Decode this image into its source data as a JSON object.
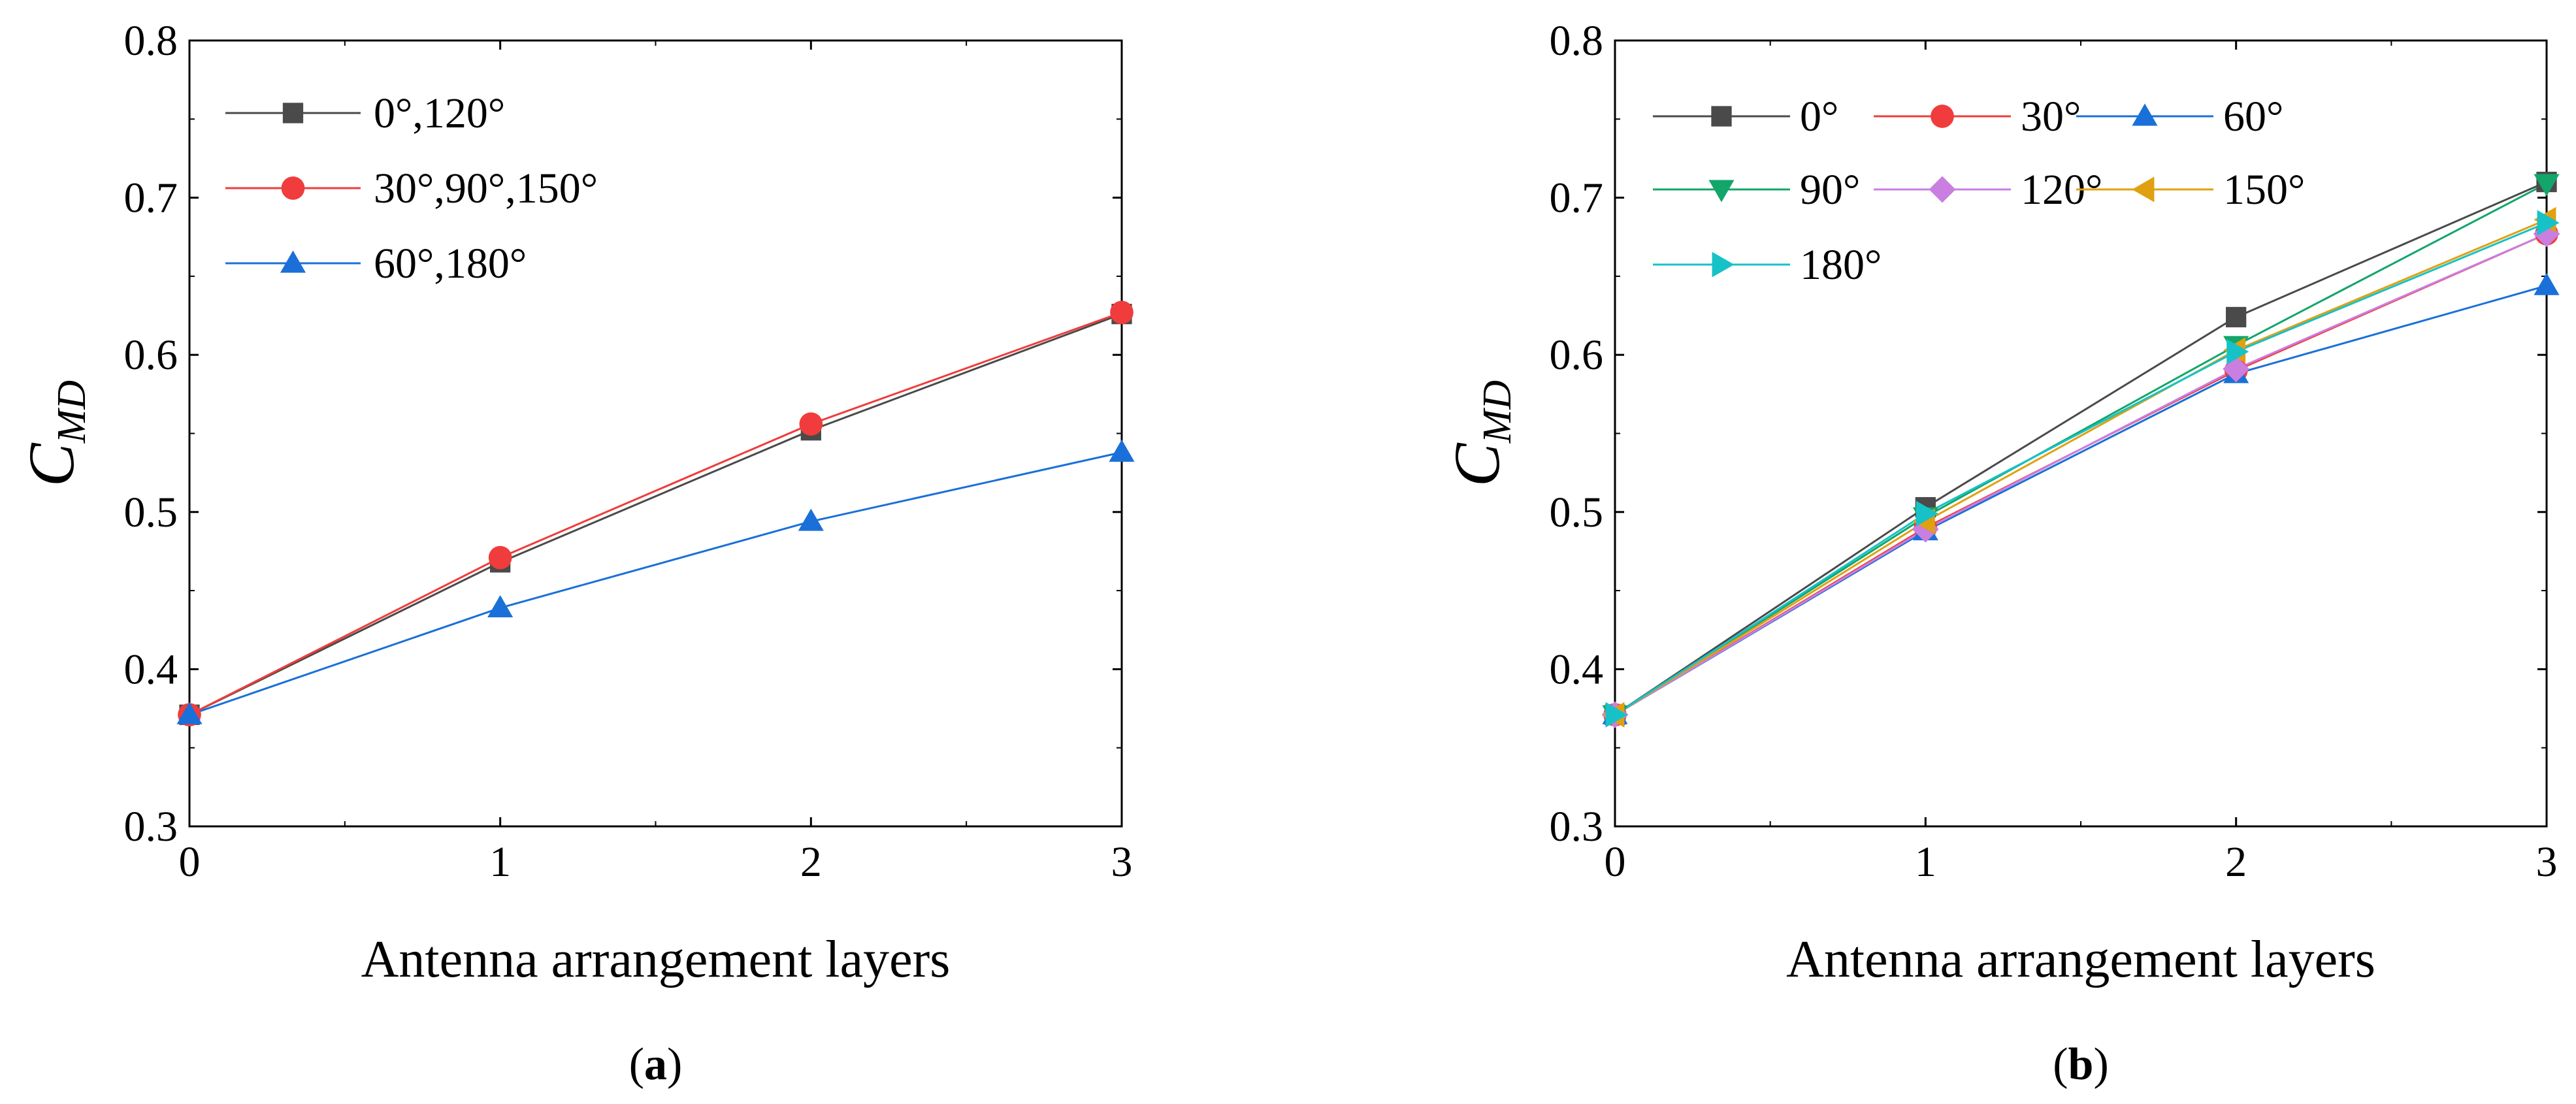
{
  "chart_data": [
    {
      "type": "line",
      "panel_label": {
        "open": "(",
        "letter": "a",
        "close": ")"
      },
      "title": "",
      "xlabel": "Antenna arrangement layers",
      "ylabel": {
        "base": "C",
        "sub": "MD"
      },
      "xlim": [
        0,
        3
      ],
      "ylim": [
        0.3,
        0.8
      ],
      "x": [
        0,
        1,
        2,
        3
      ],
      "xticks": [
        "0",
        "1",
        "2",
        "3"
      ],
      "yticks": [
        "0.3",
        "0.4",
        "0.5",
        "0.6",
        "0.7",
        "0.8"
      ],
      "legend_position": "top-left",
      "series": [
        {
          "name": "0°,120°",
          "color": "#4a4a4a",
          "marker": "square",
          "values": [
            0.371,
            0.468,
            0.552,
            0.626
          ]
        },
        {
          "name": "30°,90°,150°",
          "color": "#f03c3c",
          "marker": "circle",
          "values": [
            0.371,
            0.471,
            0.556,
            0.627
          ]
        },
        {
          "name": "60°,180°",
          "color": "#1a70d8",
          "marker": "triangle-up",
          "values": [
            0.371,
            0.439,
            0.494,
            0.538
          ]
        }
      ]
    },
    {
      "type": "line",
      "panel_label": {
        "open": "(",
        "letter": "b",
        "close": ")"
      },
      "title": "",
      "xlabel": "Antenna arrangement layers",
      "ylabel": {
        "base": "C",
        "sub": "MD"
      },
      "xlim": [
        0,
        3
      ],
      "ylim": [
        0.3,
        0.8
      ],
      "x": [
        0,
        1,
        2,
        3
      ],
      "xticks": [
        "0",
        "1",
        "2",
        "3"
      ],
      "yticks": [
        "0.3",
        "0.4",
        "0.5",
        "0.6",
        "0.7",
        "0.8"
      ],
      "legend_position": "top-left",
      "series": [
        {
          "name": "0°",
          "color": "#4a4a4a",
          "marker": "square",
          "values": [
            0.371,
            0.503,
            0.624,
            0.71
          ]
        },
        {
          "name": "30°",
          "color": "#f03c3c",
          "marker": "circle",
          "values": [
            0.371,
            0.49,
            0.59,
            0.677
          ]
        },
        {
          "name": "60°",
          "color": "#1a70d8",
          "marker": "triangle-up",
          "values": [
            0.371,
            0.488,
            0.588,
            0.644
          ]
        },
        {
          "name": "90°",
          "color": "#12a66a",
          "marker": "triangle-down",
          "values": [
            0.371,
            0.497,
            0.606,
            0.709
          ]
        },
        {
          "name": "120°",
          "color": "#c97ee0",
          "marker": "diamond",
          "values": [
            0.371,
            0.489,
            0.591,
            0.677
          ]
        },
        {
          "name": "150°",
          "color": "#e0a010",
          "marker": "triangle-left",
          "values": [
            0.371,
            0.494,
            0.603,
            0.686
          ]
        },
        {
          "name": "180°",
          "color": "#16c2c8",
          "marker": "triangle-right",
          "values": [
            0.371,
            0.499,
            0.602,
            0.684
          ]
        }
      ]
    }
  ]
}
